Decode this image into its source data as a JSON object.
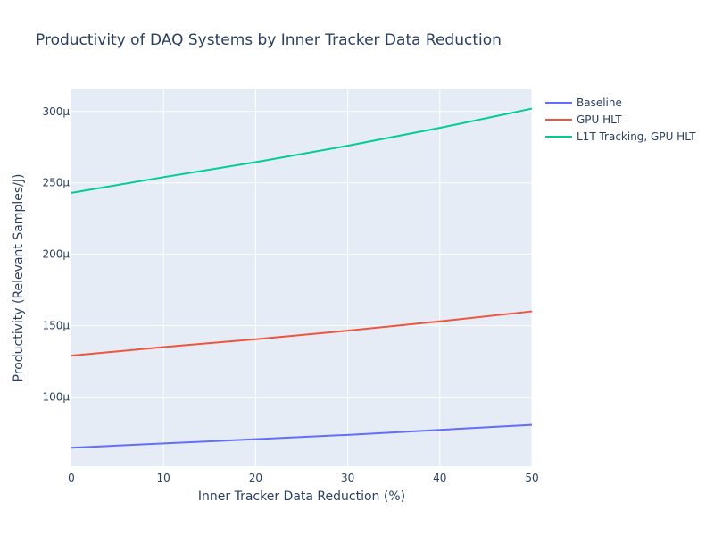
{
  "chart_data": {
    "type": "line",
    "title": "Productivity of DAQ Systems by Inner Tracker Data Reduction",
    "xlabel": "Inner Tracker Data Reduction (%)",
    "ylabel": "Productivity (Relevant Samples/J)",
    "xlim": [
      0,
      50
    ],
    "ylim": [
      5.15e-05,
      0.0003155
    ],
    "x_ticks": [
      0,
      10,
      20,
      30,
      40,
      50
    ],
    "x_tick_labels": [
      "0",
      "10",
      "20",
      "30",
      "40",
      "50"
    ],
    "y_ticks": [
      0.0001,
      0.00015,
      0.0002,
      0.00025,
      0.0003
    ],
    "y_tick_labels": [
      "100μ",
      "150μ",
      "200μ",
      "250μ",
      "300μ"
    ],
    "grid": true,
    "legend_position": "top-right outside",
    "x": [
      0,
      10,
      20,
      30,
      40,
      50
    ],
    "series": [
      {
        "name": "Baseline",
        "color": "#636efa",
        "values": [
          6.45e-05,
          6.75e-05,
          7.05e-05,
          7.35e-05,
          7.7e-05,
          8.05e-05
        ]
      },
      {
        "name": "GPU HLT",
        "color": "#ef553b",
        "values": [
          0.000129,
          0.000135,
          0.0001405,
          0.0001465,
          0.000153,
          0.00016
        ]
      },
      {
        "name": "L1T Tracking, GPU HLT",
        "color": "#00cc96",
        "values": [
          0.000243,
          0.000254,
          0.0002645,
          0.000276,
          0.0002885,
          0.000302
        ]
      }
    ],
    "colors": {
      "plot_bg": "#e5ecf6",
      "grid": "#ffffff",
      "text": "#2a3f5f"
    }
  }
}
